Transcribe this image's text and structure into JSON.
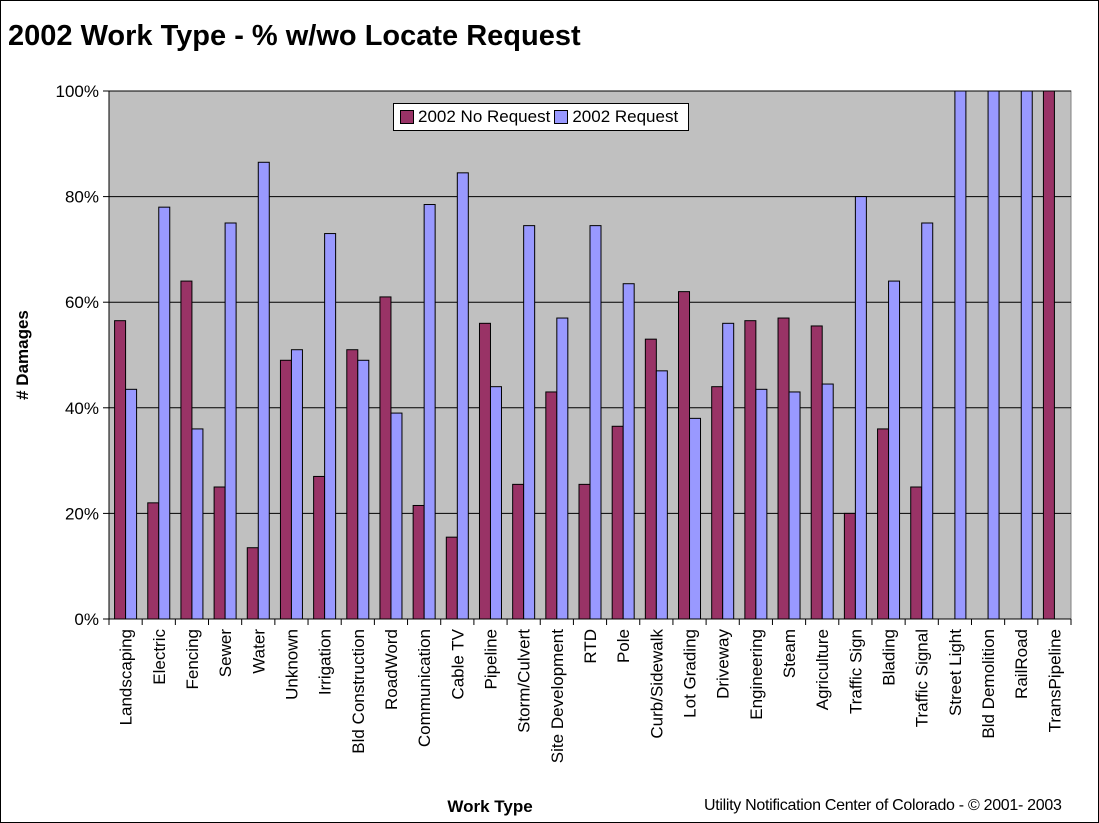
{
  "chart_data": {
    "type": "bar",
    "title": "2002 Work Type - % w/wo Locate Request",
    "xlabel": "Work Type",
    "ylabel": "# Damages",
    "ylim": [
      0,
      100
    ],
    "y_ticks": [
      "0%",
      "20%",
      "40%",
      "60%",
      "80%",
      "100%"
    ],
    "grid": true,
    "legend_position": "top-center",
    "categories": [
      "Landscaping",
      "Electric",
      "Fencing",
      "Sewer",
      "Water",
      "Unknown",
      "Irrigation",
      "Bld Construction",
      "RoadWord",
      "Communication",
      "Cable TV",
      "Pipeline",
      "Storm/Culvert",
      "Site Development",
      "RTD",
      "Pole",
      "Curb/Sidewalk",
      "Lot Grading",
      "Driveway",
      "Engineering",
      "Steam",
      "Agriculture",
      "Traffic Sign",
      "Blading",
      "Traffic Signal",
      "Street Light",
      "Bld Demolition",
      "RailRoad",
      "TransPipeline"
    ],
    "series": [
      {
        "name": "2002 No Request",
        "color": "#993366",
        "values": [
          56.5,
          22,
          64,
          25,
          13.5,
          49,
          27,
          51,
          61,
          21.5,
          15.5,
          56,
          25.5,
          43,
          25.5,
          36.5,
          53,
          62,
          44,
          56.5,
          57,
          55.5,
          20,
          36,
          25,
          0,
          0,
          0,
          100
        ]
      },
      {
        "name": "2002 Request",
        "color": "#9999FF",
        "values": [
          43.5,
          78,
          36,
          75,
          86.5,
          51,
          73,
          49,
          39,
          78.5,
          84.5,
          44,
          74.5,
          57,
          74.5,
          63.5,
          47,
          38,
          56,
          43.5,
          43,
          44.5,
          80,
          64,
          75,
          100,
          100,
          100,
          0
        ]
      }
    ]
  },
  "colors": {
    "plot_background": "#C0C0C0",
    "gridline": "#000000"
  },
  "footer": {
    "credit": "Utility Notification Center of Colorado - © 2001- 2003"
  }
}
